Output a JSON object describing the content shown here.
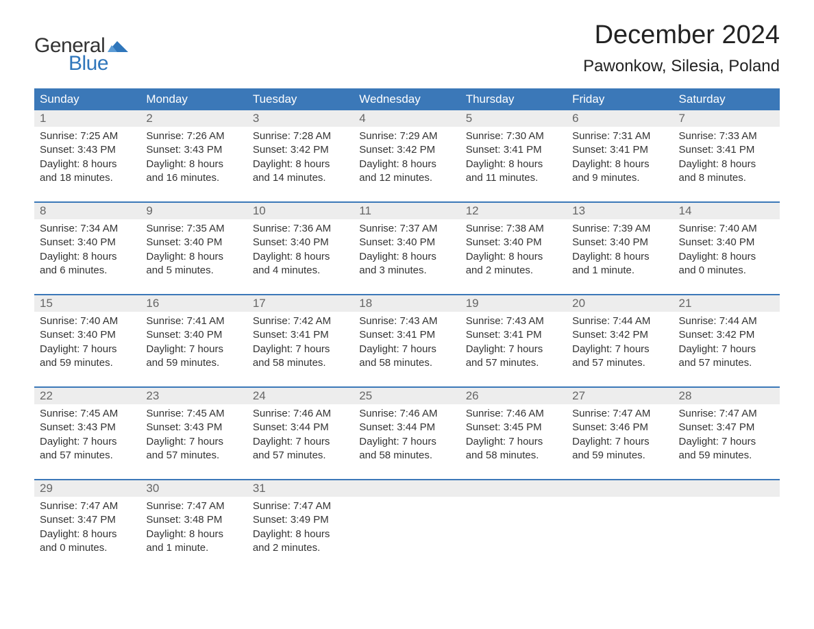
{
  "brand": {
    "general": "General",
    "blue": "Blue",
    "wing_color": "#2f76bb"
  },
  "title": "December 2024",
  "location": "Pawonkow, Silesia, Poland",
  "weekdays": [
    "Sunday",
    "Monday",
    "Tuesday",
    "Wednesday",
    "Thursday",
    "Friday",
    "Saturday"
  ],
  "colors": {
    "header_bg": "#3b78b8",
    "header_text": "#ffffff",
    "daynum_bg": "#ededed",
    "daynum_text": "#666666",
    "body_text": "#333333",
    "week_border": "#3b78b8",
    "brand_blue": "#2f76bb",
    "background": "#ffffff"
  },
  "typography": {
    "title_fontsize": 38,
    "location_fontsize": 24,
    "weekday_fontsize": 17,
    "daynum_fontsize": 17,
    "cell_fontsize": 15,
    "logo_fontsize": 30
  },
  "weeks": [
    {
      "days": [
        {
          "num": "1",
          "sunrise": "Sunrise: 7:25 AM",
          "sunset": "Sunset: 3:43 PM",
          "daylight1": "Daylight: 8 hours",
          "daylight2": "and 18 minutes."
        },
        {
          "num": "2",
          "sunrise": "Sunrise: 7:26 AM",
          "sunset": "Sunset: 3:43 PM",
          "daylight1": "Daylight: 8 hours",
          "daylight2": "and 16 minutes."
        },
        {
          "num": "3",
          "sunrise": "Sunrise: 7:28 AM",
          "sunset": "Sunset: 3:42 PM",
          "daylight1": "Daylight: 8 hours",
          "daylight2": "and 14 minutes."
        },
        {
          "num": "4",
          "sunrise": "Sunrise: 7:29 AM",
          "sunset": "Sunset: 3:42 PM",
          "daylight1": "Daylight: 8 hours",
          "daylight2": "and 12 minutes."
        },
        {
          "num": "5",
          "sunrise": "Sunrise: 7:30 AM",
          "sunset": "Sunset: 3:41 PM",
          "daylight1": "Daylight: 8 hours",
          "daylight2": "and 11 minutes."
        },
        {
          "num": "6",
          "sunrise": "Sunrise: 7:31 AM",
          "sunset": "Sunset: 3:41 PM",
          "daylight1": "Daylight: 8 hours",
          "daylight2": "and 9 minutes."
        },
        {
          "num": "7",
          "sunrise": "Sunrise: 7:33 AM",
          "sunset": "Sunset: 3:41 PM",
          "daylight1": "Daylight: 8 hours",
          "daylight2": "and 8 minutes."
        }
      ]
    },
    {
      "days": [
        {
          "num": "8",
          "sunrise": "Sunrise: 7:34 AM",
          "sunset": "Sunset: 3:40 PM",
          "daylight1": "Daylight: 8 hours",
          "daylight2": "and 6 minutes."
        },
        {
          "num": "9",
          "sunrise": "Sunrise: 7:35 AM",
          "sunset": "Sunset: 3:40 PM",
          "daylight1": "Daylight: 8 hours",
          "daylight2": "and 5 minutes."
        },
        {
          "num": "10",
          "sunrise": "Sunrise: 7:36 AM",
          "sunset": "Sunset: 3:40 PM",
          "daylight1": "Daylight: 8 hours",
          "daylight2": "and 4 minutes."
        },
        {
          "num": "11",
          "sunrise": "Sunrise: 7:37 AM",
          "sunset": "Sunset: 3:40 PM",
          "daylight1": "Daylight: 8 hours",
          "daylight2": "and 3 minutes."
        },
        {
          "num": "12",
          "sunrise": "Sunrise: 7:38 AM",
          "sunset": "Sunset: 3:40 PM",
          "daylight1": "Daylight: 8 hours",
          "daylight2": "and 2 minutes."
        },
        {
          "num": "13",
          "sunrise": "Sunrise: 7:39 AM",
          "sunset": "Sunset: 3:40 PM",
          "daylight1": "Daylight: 8 hours",
          "daylight2": "and 1 minute."
        },
        {
          "num": "14",
          "sunrise": "Sunrise: 7:40 AM",
          "sunset": "Sunset: 3:40 PM",
          "daylight1": "Daylight: 8 hours",
          "daylight2": "and 0 minutes."
        }
      ]
    },
    {
      "days": [
        {
          "num": "15",
          "sunrise": "Sunrise: 7:40 AM",
          "sunset": "Sunset: 3:40 PM",
          "daylight1": "Daylight: 7 hours",
          "daylight2": "and 59 minutes."
        },
        {
          "num": "16",
          "sunrise": "Sunrise: 7:41 AM",
          "sunset": "Sunset: 3:40 PM",
          "daylight1": "Daylight: 7 hours",
          "daylight2": "and 59 minutes."
        },
        {
          "num": "17",
          "sunrise": "Sunrise: 7:42 AM",
          "sunset": "Sunset: 3:41 PM",
          "daylight1": "Daylight: 7 hours",
          "daylight2": "and 58 minutes."
        },
        {
          "num": "18",
          "sunrise": "Sunrise: 7:43 AM",
          "sunset": "Sunset: 3:41 PM",
          "daylight1": "Daylight: 7 hours",
          "daylight2": "and 58 minutes."
        },
        {
          "num": "19",
          "sunrise": "Sunrise: 7:43 AM",
          "sunset": "Sunset: 3:41 PM",
          "daylight1": "Daylight: 7 hours",
          "daylight2": "and 57 minutes."
        },
        {
          "num": "20",
          "sunrise": "Sunrise: 7:44 AM",
          "sunset": "Sunset: 3:42 PM",
          "daylight1": "Daylight: 7 hours",
          "daylight2": "and 57 minutes."
        },
        {
          "num": "21",
          "sunrise": "Sunrise: 7:44 AM",
          "sunset": "Sunset: 3:42 PM",
          "daylight1": "Daylight: 7 hours",
          "daylight2": "and 57 minutes."
        }
      ]
    },
    {
      "days": [
        {
          "num": "22",
          "sunrise": "Sunrise: 7:45 AM",
          "sunset": "Sunset: 3:43 PM",
          "daylight1": "Daylight: 7 hours",
          "daylight2": "and 57 minutes."
        },
        {
          "num": "23",
          "sunrise": "Sunrise: 7:45 AM",
          "sunset": "Sunset: 3:43 PM",
          "daylight1": "Daylight: 7 hours",
          "daylight2": "and 57 minutes."
        },
        {
          "num": "24",
          "sunrise": "Sunrise: 7:46 AM",
          "sunset": "Sunset: 3:44 PM",
          "daylight1": "Daylight: 7 hours",
          "daylight2": "and 57 minutes."
        },
        {
          "num": "25",
          "sunrise": "Sunrise: 7:46 AM",
          "sunset": "Sunset: 3:44 PM",
          "daylight1": "Daylight: 7 hours",
          "daylight2": "and 58 minutes."
        },
        {
          "num": "26",
          "sunrise": "Sunrise: 7:46 AM",
          "sunset": "Sunset: 3:45 PM",
          "daylight1": "Daylight: 7 hours",
          "daylight2": "and 58 minutes."
        },
        {
          "num": "27",
          "sunrise": "Sunrise: 7:47 AM",
          "sunset": "Sunset: 3:46 PM",
          "daylight1": "Daylight: 7 hours",
          "daylight2": "and 59 minutes."
        },
        {
          "num": "28",
          "sunrise": "Sunrise: 7:47 AM",
          "sunset": "Sunset: 3:47 PM",
          "daylight1": "Daylight: 7 hours",
          "daylight2": "and 59 minutes."
        }
      ]
    },
    {
      "days": [
        {
          "num": "29",
          "sunrise": "Sunrise: 7:47 AM",
          "sunset": "Sunset: 3:47 PM",
          "daylight1": "Daylight: 8 hours",
          "daylight2": "and 0 minutes."
        },
        {
          "num": "30",
          "sunrise": "Sunrise: 7:47 AM",
          "sunset": "Sunset: 3:48 PM",
          "daylight1": "Daylight: 8 hours",
          "daylight2": "and 1 minute."
        },
        {
          "num": "31",
          "sunrise": "Sunrise: 7:47 AM",
          "sunset": "Sunset: 3:49 PM",
          "daylight1": "Daylight: 8 hours",
          "daylight2": "and 2 minutes."
        },
        {
          "empty": true
        },
        {
          "empty": true
        },
        {
          "empty": true
        },
        {
          "empty": true
        }
      ]
    }
  ]
}
